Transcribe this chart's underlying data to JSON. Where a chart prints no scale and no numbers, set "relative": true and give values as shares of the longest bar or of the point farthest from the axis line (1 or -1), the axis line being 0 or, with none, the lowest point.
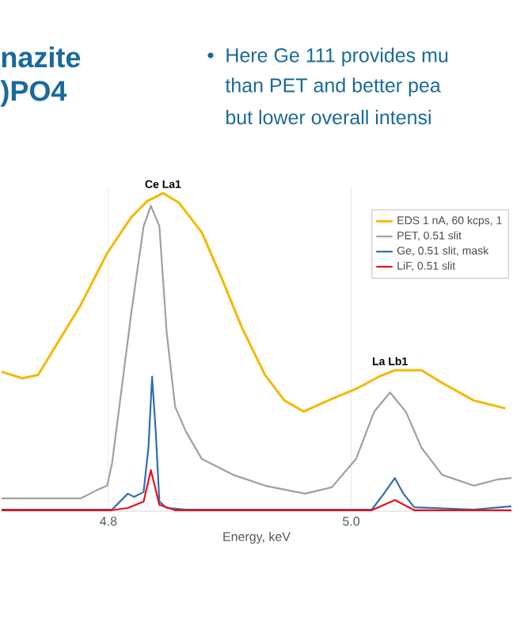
{
  "chart_data": {
    "type": "line",
    "title": "nazite",
    "subtitle": ")PO4",
    "xlabel": "Energy, keV",
    "relative": true,
    "xlim": [
      4.712,
      5.132
    ],
    "xticks": [
      {
        "value": 4.8,
        "label": "4.8"
      },
      {
        "value": 5.0,
        "label": "5.0"
      }
    ],
    "grid": true,
    "legend": "top right",
    "marker": "none",
    "line_style": "solid",
    "annotations": [
      "Here Ge 111 provides mu",
      "than PET and better pea",
      "but lower overall intensi",
      {
        "text": "Ce La1",
        "x": 4.845,
        "y": 1
      },
      {
        "text": "La Lb1",
        "x": 5.032,
        "y": 0.443
      }
    ],
    "series": [
      {
        "name": "EDS 1 nA, 60 kcps, 1",
        "color": "#f5b800",
        "x": [
          4.712,
          4.729,
          4.742,
          4.777,
          4.799,
          4.819,
          4.832,
          4.845,
          4.858,
          4.877,
          4.894,
          4.91,
          4.929,
          4.945,
          4.961,
          4.981,
          5.006,
          5.023,
          5.036,
          5.058,
          5.075,
          5.101,
          5.127
        ],
        "values": [
          0.438,
          0.418,
          0.428,
          0.647,
          0.811,
          0.925,
          0.975,
          1,
          0.97,
          0.876,
          0.726,
          0.577,
          0.428,
          0.348,
          0.313,
          0.348,
          0.388,
          0.423,
          0.443,
          0.443,
          0.403,
          0.348,
          0.323
        ]
      },
      {
        "name": "PET, 0.51 slit",
        "color": "#a0a0a0",
        "x": [
          4.712,
          4.777,
          4.79,
          4.799,
          4.803,
          4.809,
          4.819,
          4.829,
          4.835,
          4.842,
          4.848,
          4.855,
          4.864,
          4.877,
          4.903,
          4.929,
          4.962,
          4.984,
          5.004,
          5.019,
          5.032,
          5.045,
          5.058,
          5.075,
          5.101,
          5.121,
          5.132
        ],
        "values": [
          0.04,
          0.04,
          0.065,
          0.08,
          0.15,
          0.328,
          0.627,
          0.896,
          0.96,
          0.896,
          0.562,
          0.328,
          0.249,
          0.164,
          0.114,
          0.08,
          0.055,
          0.075,
          0.164,
          0.313,
          0.373,
          0.313,
          0.199,
          0.114,
          0.08,
          0.1,
          0.104
        ]
      },
      {
        "name": "Ge, 0.51 slit, mask",
        "color": "#2e6fb0",
        "x": [
          4.712,
          4.803,
          4.816,
          4.821,
          4.829,
          4.833,
          4.836,
          4.839,
          4.842,
          4.848,
          4.864,
          5.017,
          5.027,
          5.036,
          5.043,
          5.052,
          5.101,
          5.132
        ],
        "values": [
          0.005,
          0.005,
          0.055,
          0.045,
          0.06,
          0.2,
          0.423,
          0.25,
          0.03,
          0.01,
          0.005,
          0.005,
          0.055,
          0.104,
          0.055,
          0.012,
          0.005,
          0.015
        ]
      },
      {
        "name": "LiF, 0.51 slit",
        "color": "#e8101a",
        "x": [
          4.712,
          4.803,
          4.816,
          4.829,
          4.835,
          4.842,
          4.855,
          5.017,
          5.036,
          5.052,
          5.132
        ],
        "values": [
          0.003,
          0.003,
          0.01,
          0.03,
          0.129,
          0.02,
          0.003,
          0.003,
          0.035,
          0.003,
          0.003
        ]
      }
    ]
  }
}
